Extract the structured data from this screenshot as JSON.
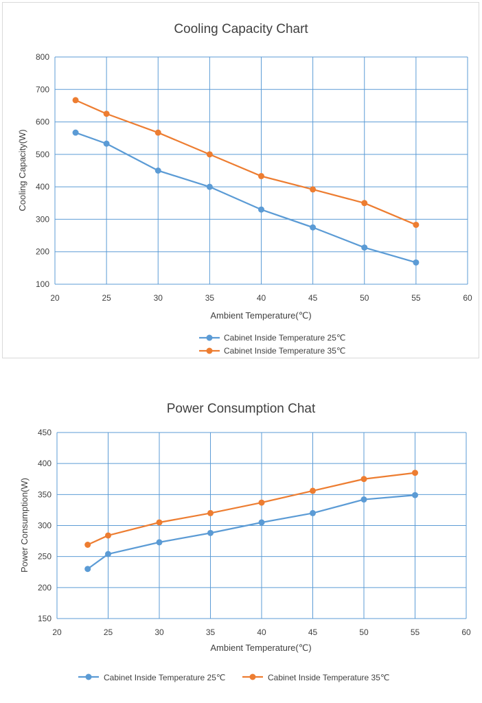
{
  "colors": {
    "series1": "#5B9BD5",
    "series2": "#ED7D31",
    "grid": "#5B9BD5",
    "text": "#404040"
  },
  "chart_data": [
    {
      "type": "line",
      "title": "Cooling Capacity Chart",
      "xlabel": "Ambient Temperature(℃)",
      "ylabel": "Cooling Capacity(W)",
      "xlim": [
        20,
        60
      ],
      "ylim": [
        100,
        800
      ],
      "xticks": [
        20,
        25,
        30,
        35,
        40,
        45,
        50,
        55,
        60
      ],
      "yticks": [
        100,
        200,
        300,
        400,
        500,
        600,
        700,
        800
      ],
      "grid": true,
      "legend_position": "bottom",
      "legend_layout": "vertical",
      "series": [
        {
          "name": "Cabinet Inside Temperature 25℃",
          "x": [
            22,
            25,
            30,
            35,
            40,
            45,
            50,
            55
          ],
          "y": [
            567,
            533,
            450,
            400,
            330,
            275,
            213,
            167
          ]
        },
        {
          "name": "Cabinet Inside Temperature 35℃",
          "x": [
            22,
            25,
            30,
            35,
            40,
            45,
            50,
            55
          ],
          "y": [
            667,
            625,
            567,
            500,
            433,
            392,
            350,
            283
          ]
        }
      ]
    },
    {
      "type": "line",
      "title": "Power Consumption Chat",
      "xlabel": "Ambient Temperature(℃)",
      "ylabel": "Power Consumption(W)",
      "xlim": [
        20,
        60
      ],
      "ylim": [
        150,
        450
      ],
      "xticks": [
        20,
        25,
        30,
        35,
        40,
        45,
        50,
        55,
        60
      ],
      "yticks": [
        150,
        200,
        250,
        300,
        350,
        400,
        450
      ],
      "grid": true,
      "legend_position": "bottom",
      "legend_layout": "horizontal",
      "series": [
        {
          "name": "Cabinet Inside Temperature 25℃",
          "x": [
            23,
            25,
            30,
            35,
            40,
            45,
            50,
            55
          ],
          "y": [
            230,
            254,
            273,
            288,
            305,
            320,
            342,
            349
          ]
        },
        {
          "name": "Cabinet Inside Temperature 35℃",
          "x": [
            23,
            25,
            30,
            35,
            40,
            45,
            50,
            55
          ],
          "y": [
            269,
            284,
            305,
            320,
            337,
            356,
            375,
            385
          ]
        }
      ]
    }
  ]
}
